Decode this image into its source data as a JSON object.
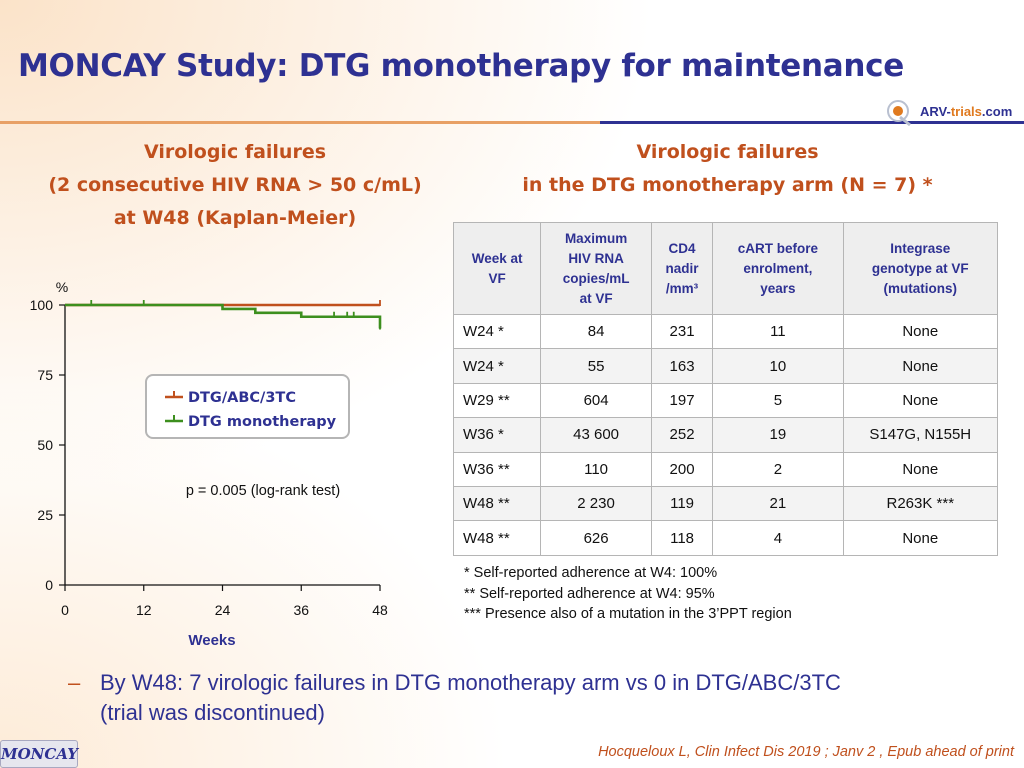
{
  "title": "MONCAY Study: DTG monotherapy for maintenance",
  "logo": {
    "text_main": "ARV-",
    "text_accent": "trials",
    "text_tail": ".com"
  },
  "left_heading": {
    "line1": "Virologic failures",
    "line2": "(2 consecutive HIV RNA > 50 c/mL)",
    "line3": "at W48 (Kaplan-Meier)"
  },
  "right_heading": {
    "line1": "Virologic failures",
    "line2": "in the DTG monotherapy arm (N = 7) *"
  },
  "chart_data": {
    "type": "line",
    "ylabel": "%",
    "xlabel": "Weeks",
    "xlim": [
      0,
      48
    ],
    "ylim": [
      0,
      100
    ],
    "x_ticks": [
      0,
      12,
      24,
      36,
      48
    ],
    "y_ticks": [
      0,
      25,
      50,
      75,
      100
    ],
    "annotation": "p = 0.005 (log-rank test)",
    "legend_placement": "center",
    "series": [
      {
        "name": "DTG/ABC/3TC",
        "color": "#c0501d",
        "steps": [
          [
            0,
            100
          ],
          [
            48,
            100
          ]
        ],
        "censor_ticks": [
          48
        ]
      },
      {
        "name": "DTG monotherapy",
        "color": "#3d8f1e",
        "steps": [
          [
            0,
            100
          ],
          [
            24,
            100
          ],
          [
            24,
            98.6
          ],
          [
            29,
            98.6
          ],
          [
            29,
            97.2
          ],
          [
            36,
            97.2
          ],
          [
            36,
            95.8
          ],
          [
            48,
            95.8
          ],
          [
            48,
            91.6
          ]
        ],
        "censor_ticks": [
          4,
          12,
          41,
          43,
          44,
          48
        ]
      }
    ]
  },
  "table": {
    "headers": [
      [
        "Week at",
        "VF"
      ],
      [
        "Maximum",
        "HIV RNA",
        "copies/mL",
        "at VF"
      ],
      [
        "CD4",
        "nadir",
        "/mm³"
      ],
      [
        "cART before",
        "enrolment,",
        "years"
      ],
      [
        "Integrase",
        "genotype at VF",
        "(mutations)"
      ]
    ],
    "rows": [
      [
        "W24 *",
        "84",
        "231",
        "11",
        "None"
      ],
      [
        "W24 *",
        "55",
        "163",
        "10",
        "None"
      ],
      [
        "W29 **",
        "604",
        "197",
        "5",
        "None"
      ],
      [
        "W36 *",
        "43 600",
        "252",
        "19",
        "S147G, N155H"
      ],
      [
        "W36 **",
        "110",
        "200",
        "2",
        "None"
      ],
      [
        "W48 **",
        "2 230",
        "119",
        "21",
        "R263K ***"
      ],
      [
        "W48 **",
        "626",
        "118",
        "4",
        "None"
      ]
    ]
  },
  "footnotes": [
    "* Self-reported adherence at W4: 100%",
    "** Self-reported adherence at W4: 95%",
    "*** Presence also of a mutation in the 3’PPT region"
  ],
  "bullet": {
    "dash": "–",
    "line1": "By W48: 7 virologic failures in DTG monotherapy arm vs 0 in DTG/ABC/3TC",
    "line2": "(trial was discontinued)"
  },
  "badge": "MONCAY",
  "citation": "Hocqueloux L, Clin Infect Dis 2019 ; Janv 2 , Epub ahead of print"
}
